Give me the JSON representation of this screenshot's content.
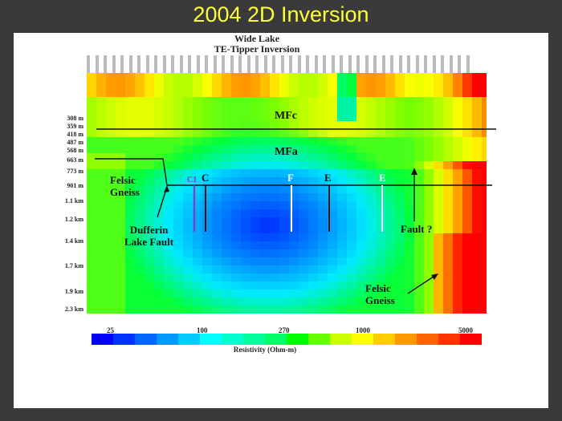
{
  "slide_title": "2004 2D Inversion",
  "plot_title": [
    "Wide Lake",
    "TE-Tipper Inversion"
  ],
  "depth_labels": [
    "308 m",
    "359 m",
    "418 m",
    "487 m",
    "568 m",
    "663 m",
    "773 m",
    "901 m",
    "1.1 km",
    "1.2 km",
    "1.4 km",
    "1.7 km",
    "1.9 km",
    "2.3 km"
  ],
  "units": {
    "mfc": "MFc",
    "mfa": "MFa"
  },
  "annotations": {
    "felsic_gneiss_left": [
      "Felsic",
      "Gneiss"
    ],
    "dufferin": [
      "Dufferin",
      "Lake Fault"
    ],
    "fault": "Fault ?",
    "felsic_gneiss_right": [
      "Felsic",
      "Gneiss"
    ],
    "c1": "C1",
    "c": "C",
    "f": "F",
    "e1": "E",
    "e2": "E"
  },
  "colorbar": {
    "ticks": [
      "25",
      "100",
      "270",
      "1000",
      "5000"
    ],
    "label": "Resistivity (Ohm-m)",
    "colors": [
      "#0000ff",
      "#0033ff",
      "#0066ff",
      "#0099ff",
      "#00ccff",
      "#00ffff",
      "#00ffcc",
      "#00ff99",
      "#00ff66",
      "#00ff00",
      "#66ff00",
      "#ccff00",
      "#ffff00",
      "#ffcc00",
      "#ff9900",
      "#ff6600",
      "#ff3300",
      "#ff0000"
    ]
  }
}
